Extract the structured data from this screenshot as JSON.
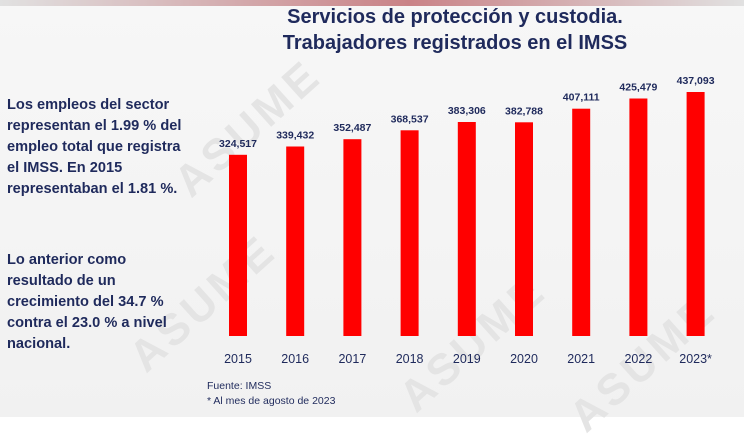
{
  "title_line1": "Servicios de protección y custodia.",
  "title_line2": "Trabajadores registrados en el IMSS",
  "paragraph1": "Los empleos del sector representan el 1.99 % del empleo total que registra el IMSS. En 2015 representaban el 1.81 %.",
  "paragraph2": "Lo anterior como resultado de un crecimiento del 34.7 % contra el 23.0 % a nivel nacional.",
  "source": "Fuente: IMSS",
  "footnote": "* Al mes de agosto de 2023",
  "watermark": "ASUME",
  "colors": {
    "bar": "#ff0000",
    "text": "#1f2a5c"
  },
  "chart_data": {
    "type": "bar",
    "title": "Servicios de protección y custodia. Trabajadores registrados en el IMSS",
    "xlabel": "",
    "ylabel": "",
    "categories": [
      "2015",
      "2016",
      "2017",
      "2018",
      "2019",
      "2020",
      "2021",
      "2022",
      "2023*"
    ],
    "values": [
      324517,
      339432,
      352487,
      368537,
      383306,
      382788,
      407111,
      425479,
      437093
    ],
    "value_labels": [
      "324,517",
      "339,432",
      "352,487",
      "368,537",
      "383,306",
      "382,788",
      "407,111",
      "425,479",
      "437,093"
    ],
    "grid": false,
    "legend": "none"
  }
}
